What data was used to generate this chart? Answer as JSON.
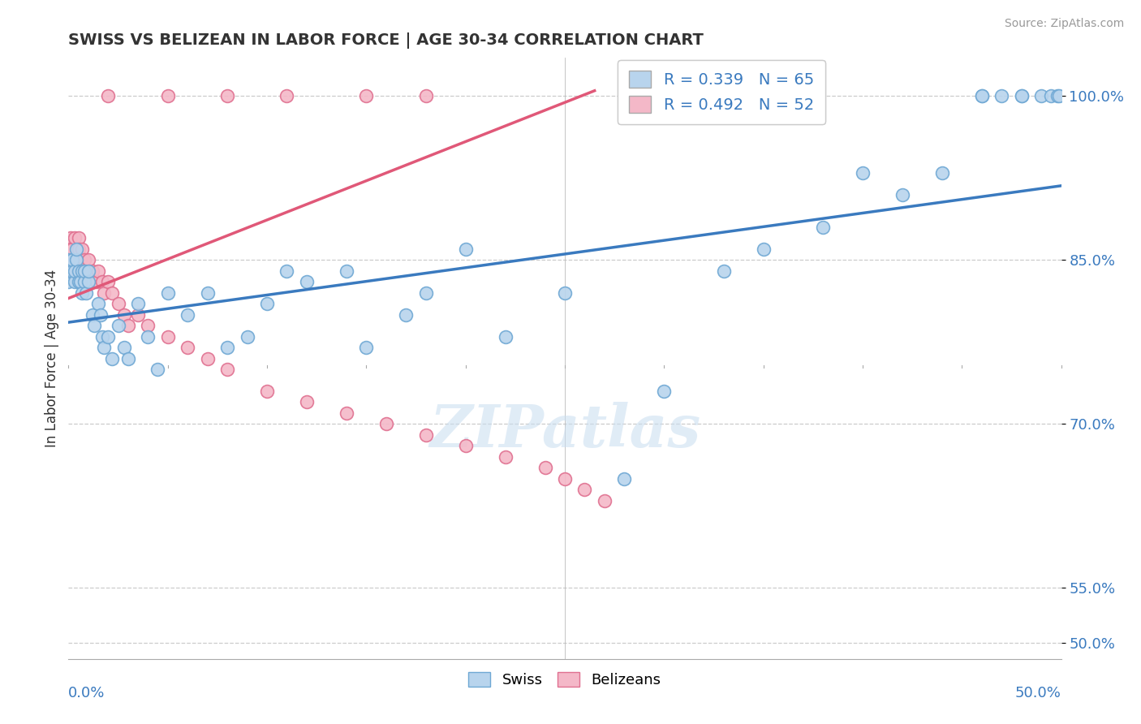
{
  "title": "SWISS VS BELIZEAN IN LABOR FORCE | AGE 30-34 CORRELATION CHART",
  "source_text": "Source: ZipAtlas.com",
  "ylabel": "In Labor Force | Age 30-34",
  "swiss_color": "#b8d4ed",
  "swiss_edge_color": "#6fa8d4",
  "belizean_color": "#f4b8c8",
  "belizean_edge_color": "#e07090",
  "swiss_line_color": "#3a7abf",
  "belizean_line_color": "#e05878",
  "xmin": 0.0,
  "xmax": 0.5,
  "ymin": 0.485,
  "ymax": 1.035,
  "ytick_values": [
    0.5,
    0.55,
    0.7,
    0.85,
    1.0
  ],
  "ytick_labels": [
    "50.0%",
    "55.0%",
    "70.0%",
    "85.0%",
    "100.0%"
  ],
  "watermark_text": "ZIPatlas",
  "swiss_x": [
    0.0,
    0.0,
    0.0,
    0.002,
    0.002,
    0.003,
    0.003,
    0.004,
    0.004,
    0.005,
    0.005,
    0.006,
    0.007,
    0.007,
    0.008,
    0.008,
    0.009,
    0.01,
    0.01,
    0.012,
    0.013,
    0.015,
    0.016,
    0.017,
    0.018,
    0.02,
    0.022,
    0.025,
    0.028,
    0.03,
    0.035,
    0.04,
    0.045,
    0.05,
    0.06,
    0.07,
    0.08,
    0.09,
    0.1,
    0.11,
    0.12,
    0.14,
    0.15,
    0.17,
    0.18,
    0.2,
    0.22,
    0.25,
    0.28,
    0.3,
    0.33,
    0.35,
    0.38,
    0.4,
    0.42,
    0.44,
    0.46,
    0.46,
    0.47,
    0.48,
    0.48,
    0.49,
    0.495,
    0.498,
    0.499
  ],
  "swiss_y": [
    0.83,
    0.84,
    0.85,
    0.84,
    0.85,
    0.83,
    0.84,
    0.85,
    0.86,
    0.83,
    0.84,
    0.83,
    0.82,
    0.84,
    0.83,
    0.84,
    0.82,
    0.83,
    0.84,
    0.8,
    0.79,
    0.81,
    0.8,
    0.78,
    0.77,
    0.78,
    0.76,
    0.79,
    0.77,
    0.76,
    0.81,
    0.78,
    0.75,
    0.82,
    0.8,
    0.82,
    0.77,
    0.78,
    0.81,
    0.84,
    0.83,
    0.84,
    0.77,
    0.8,
    0.82,
    0.86,
    0.78,
    0.82,
    0.65,
    0.73,
    0.84,
    0.86,
    0.88,
    0.93,
    0.91,
    0.93,
    1.0,
    1.0,
    1.0,
    1.0,
    1.0,
    1.0,
    1.0,
    1.0,
    1.0
  ],
  "belizean_x": [
    0.0,
    0.0,
    0.0,
    0.0,
    0.0,
    0.001,
    0.001,
    0.002,
    0.002,
    0.003,
    0.003,
    0.004,
    0.005,
    0.005,
    0.006,
    0.007,
    0.008,
    0.009,
    0.01,
    0.012,
    0.014,
    0.015,
    0.017,
    0.018,
    0.02,
    0.022,
    0.025,
    0.028,
    0.03,
    0.035,
    0.04,
    0.05,
    0.06,
    0.07,
    0.08,
    0.1,
    0.12,
    0.14,
    0.16,
    0.18,
    0.2,
    0.22,
    0.24,
    0.25,
    0.26,
    0.27,
    0.02,
    0.05,
    0.08,
    0.11,
    0.15,
    0.18
  ],
  "belizean_y": [
    0.84,
    0.85,
    0.86,
    0.85,
    0.86,
    0.87,
    0.86,
    0.85,
    0.86,
    0.87,
    0.85,
    0.84,
    0.87,
    0.86,
    0.85,
    0.86,
    0.85,
    0.84,
    0.85,
    0.84,
    0.83,
    0.84,
    0.83,
    0.82,
    0.83,
    0.82,
    0.81,
    0.8,
    0.79,
    0.8,
    0.79,
    0.78,
    0.77,
    0.76,
    0.75,
    0.73,
    0.72,
    0.71,
    0.7,
    0.69,
    0.68,
    0.67,
    0.66,
    0.65,
    0.64,
    0.63,
    1.0,
    1.0,
    1.0,
    1.0,
    1.0,
    1.0
  ],
  "swiss_trend_x": [
    0.0,
    0.5
  ],
  "swiss_trend_y": [
    0.793,
    0.918
  ],
  "belizean_trend_x": [
    0.0,
    0.265
  ],
  "belizean_trend_y": [
    0.815,
    1.005
  ]
}
